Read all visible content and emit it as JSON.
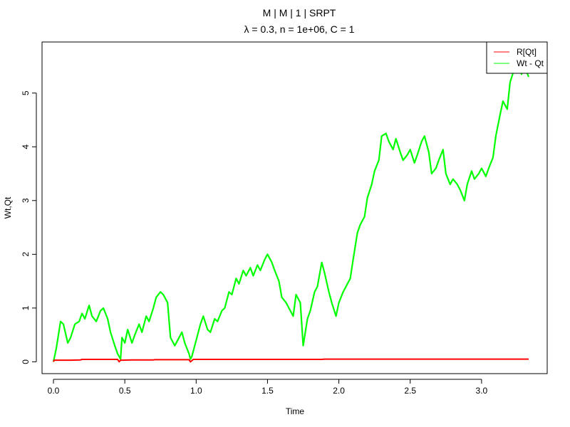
{
  "chart_data": {
    "type": "line",
    "title": "M | M | 1 | SRPT",
    "subtitle": "λ = 0.3, n = 1e+06, C = 1",
    "xlabel": "Time",
    "ylabel": "Wt,Qt",
    "xlim": [
      -0.08,
      3.46
    ],
    "ylim": [
      -0.22,
      5.95
    ],
    "xticks": [
      0.0,
      0.5,
      1.0,
      1.5,
      2.0,
      2.5,
      3.0
    ],
    "xtick_labels": [
      "0.0",
      "0.5",
      "1.0",
      "1.5",
      "2.0",
      "2.5",
      "3.0"
    ],
    "yticks": [
      0,
      1,
      2,
      3,
      4,
      5
    ],
    "ytick_labels": [
      "0",
      "1",
      "2",
      "3",
      "4",
      "5"
    ],
    "grid": false,
    "legend_position": "top-right",
    "series": [
      {
        "name": "R[Qt]",
        "color": "#ff0000",
        "x": [
          0.0,
          0.005,
          0.06,
          0.12,
          0.19,
          0.2,
          0.3,
          0.45,
          0.46,
          0.47,
          0.48,
          0.55,
          0.65,
          0.7,
          0.71,
          0.85,
          0.95,
          0.96,
          0.98,
          1.2,
          1.5,
          1.8,
          1.88,
          1.9,
          2.2,
          2.6,
          3.0,
          3.33
        ],
        "values": [
          0.0,
          0.03,
          0.03,
          0.03,
          0.035,
          0.045,
          0.045,
          0.045,
          0.0,
          0.03,
          0.03,
          0.035,
          0.035,
          0.035,
          0.04,
          0.04,
          0.04,
          0.0,
          0.045,
          0.045,
          0.045,
          0.045,
          0.045,
          0.05,
          0.05,
          0.05,
          0.05,
          0.05
        ]
      },
      {
        "name": "Wt - Qt",
        "color": "#00ff00",
        "x": [
          0.0,
          0.02,
          0.05,
          0.07,
          0.1,
          0.12,
          0.15,
          0.18,
          0.2,
          0.22,
          0.25,
          0.27,
          0.3,
          0.33,
          0.35,
          0.38,
          0.4,
          0.43,
          0.45,
          0.47,
          0.48,
          0.5,
          0.52,
          0.55,
          0.57,
          0.6,
          0.62,
          0.65,
          0.67,
          0.7,
          0.72,
          0.75,
          0.77,
          0.8,
          0.82,
          0.85,
          0.87,
          0.9,
          0.92,
          0.95,
          0.96,
          0.97,
          1.0,
          1.03,
          1.05,
          1.08,
          1.1,
          1.13,
          1.15,
          1.18,
          1.2,
          1.23,
          1.25,
          1.28,
          1.3,
          1.33,
          1.35,
          1.38,
          1.4,
          1.43,
          1.45,
          1.48,
          1.5,
          1.53,
          1.55,
          1.58,
          1.6,
          1.63,
          1.65,
          1.68,
          1.7,
          1.73,
          1.75,
          1.78,
          1.8,
          1.83,
          1.85,
          1.88,
          1.9,
          1.93,
          1.95,
          1.98,
          2.0,
          2.03,
          2.05,
          2.08,
          2.1,
          2.13,
          2.15,
          2.18,
          2.2,
          2.23,
          2.25,
          2.28,
          2.3,
          2.33,
          2.35,
          2.38,
          2.4,
          2.43,
          2.45,
          2.48,
          2.5,
          2.53,
          2.55,
          2.58,
          2.6,
          2.63,
          2.65,
          2.68,
          2.7,
          2.73,
          2.75,
          2.78,
          2.8,
          2.83,
          2.85,
          2.88,
          2.9,
          2.93,
          2.95,
          2.98,
          3.0,
          3.03,
          3.05,
          3.08,
          3.1,
          3.13,
          3.15,
          3.18,
          3.2,
          3.23,
          3.25,
          3.28,
          3.3,
          3.33
        ],
        "values": [
          0.0,
          0.25,
          0.75,
          0.7,
          0.35,
          0.45,
          0.7,
          0.75,
          0.9,
          0.8,
          1.05,
          0.85,
          0.75,
          0.95,
          1.0,
          0.8,
          0.55,
          0.3,
          0.15,
          0.05,
          0.45,
          0.35,
          0.6,
          0.35,
          0.5,
          0.7,
          0.55,
          0.85,
          0.75,
          1.0,
          1.2,
          1.3,
          1.25,
          1.1,
          0.45,
          0.3,
          0.4,
          0.55,
          0.35,
          0.15,
          0.05,
          0.1,
          0.4,
          0.7,
          0.85,
          0.6,
          0.55,
          0.8,
          0.75,
          0.95,
          1.0,
          1.3,
          1.25,
          1.55,
          1.45,
          1.7,
          1.6,
          1.75,
          1.6,
          1.8,
          1.7,
          1.9,
          2.0,
          1.85,
          1.7,
          1.5,
          1.2,
          1.1,
          1.0,
          0.85,
          1.25,
          1.1,
          0.3,
          0.8,
          0.95,
          1.3,
          1.4,
          1.85,
          1.65,
          1.3,
          1.1,
          0.85,
          1.1,
          1.3,
          1.4,
          1.55,
          1.9,
          2.4,
          2.55,
          2.7,
          3.05,
          3.3,
          3.55,
          3.75,
          4.2,
          4.25,
          4.1,
          3.95,
          4.15,
          3.9,
          3.75,
          3.85,
          3.95,
          3.7,
          3.85,
          4.1,
          4.2,
          3.9,
          3.5,
          3.6,
          3.75,
          3.95,
          3.5,
          3.3,
          3.4,
          3.3,
          3.2,
          3.0,
          3.3,
          3.55,
          3.4,
          3.5,
          3.6,
          3.45,
          3.6,
          3.8,
          4.2,
          4.6,
          4.85,
          4.7,
          5.2,
          5.45,
          5.6,
          5.35,
          5.5,
          5.3
        ]
      }
    ]
  }
}
